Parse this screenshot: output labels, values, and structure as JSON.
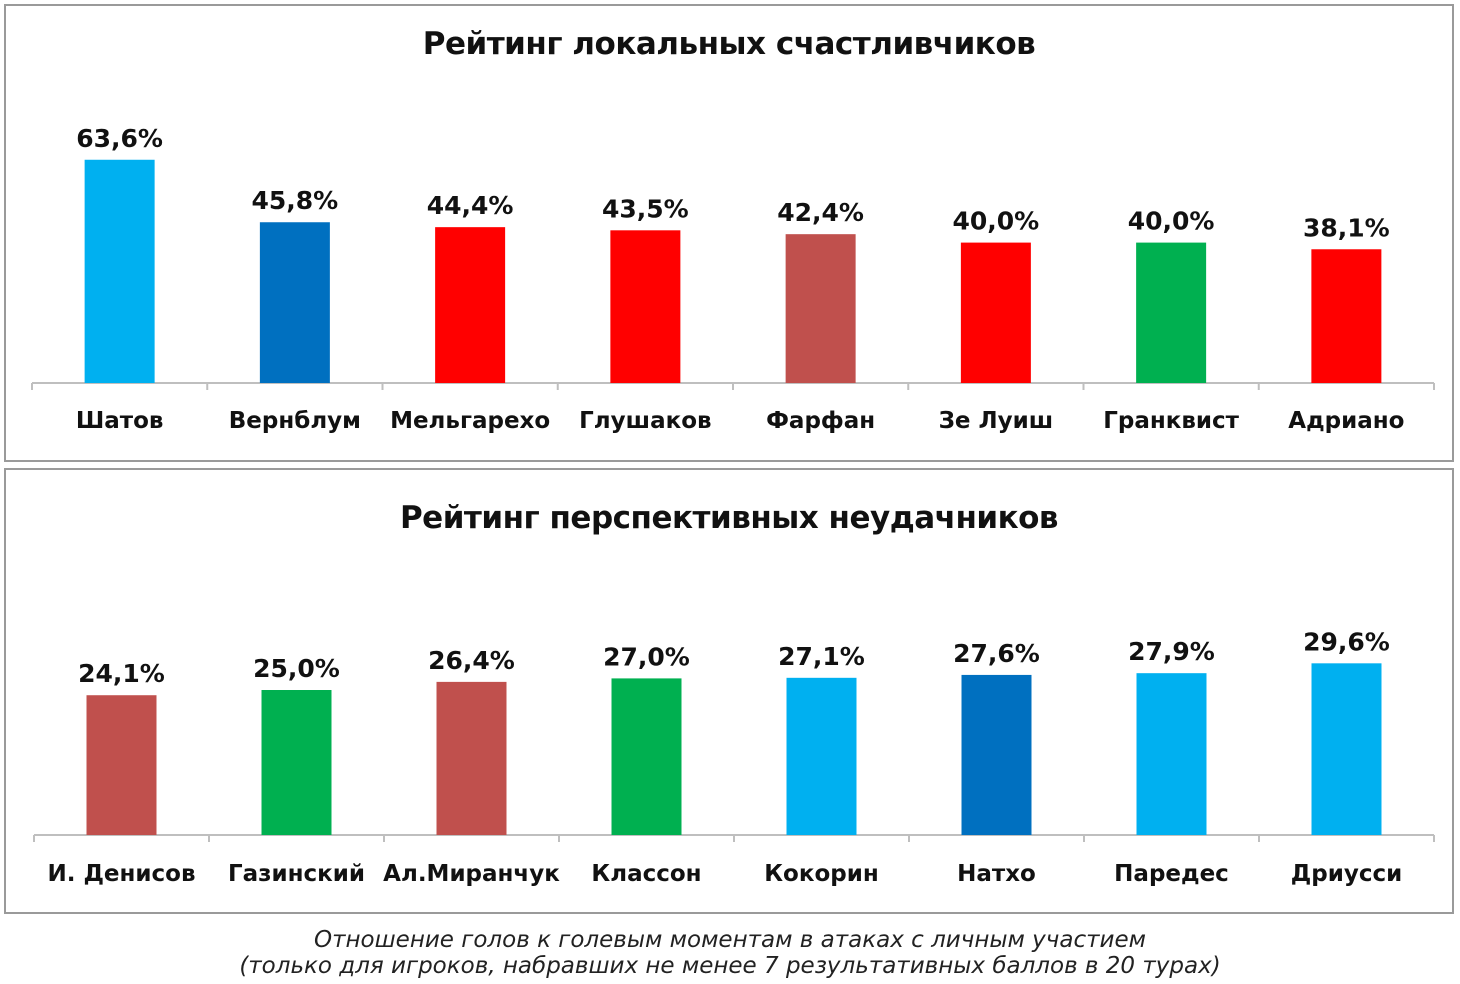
{
  "chart_data": [
    {
      "type": "bar",
      "title": "Рейтинг локальных счастливчиков",
      "categories": [
        "Шатов",
        "Вернблум",
        "Мельгарехо",
        "Глушаков",
        "Фарфан",
        "Зе Луиш",
        "Гранквист",
        "Адриано"
      ],
      "values": [
        63.6,
        45.8,
        44.4,
        43.5,
        42.4,
        40.0,
        40.0,
        38.1
      ],
      "labels": [
        "63,6%",
        "45,8%",
        "44,4%",
        "43,5%",
        "42,4%",
        "40,0%",
        "40,0%",
        "38,1%"
      ],
      "colors": [
        "#00b0f0",
        "#0070c0",
        "#ff0000",
        "#ff0000",
        "#c0504d",
        "#ff0000",
        "#00b050",
        "#ff0000"
      ],
      "ylim": [
        0,
        70
      ],
      "grid": false,
      "legend": "none"
    },
    {
      "type": "bar",
      "title": "Рейтинг перспективных неудачников",
      "categories": [
        "И. Денисов",
        "Газинский",
        "Ал.Миранчук",
        "Классон",
        "Кокорин",
        "Натхо",
        "Паредес",
        "Дриусси"
      ],
      "values": [
        24.1,
        25.0,
        26.4,
        27.0,
        27.1,
        27.6,
        27.9,
        29.6
      ],
      "labels": [
        "24,1%",
        "25,0%",
        "26,4%",
        "27,0%",
        "27,1%",
        "27,6%",
        "27,9%",
        "29,6%"
      ],
      "colors": [
        "#c0504d",
        "#00b050",
        "#c0504d",
        "#00b050",
        "#00b0f0",
        "#0070c0",
        "#00b0f0",
        "#00b0f0"
      ],
      "ylim": [
        0,
        35
      ],
      "grid": false,
      "legend": "none"
    }
  ],
  "caption": {
    "line1": "Отношение голов к голевым моментам в атаках с личным участием",
    "line2": "(только для игроков, набравших не менее 7 результативных баллов в 20 турах)"
  }
}
